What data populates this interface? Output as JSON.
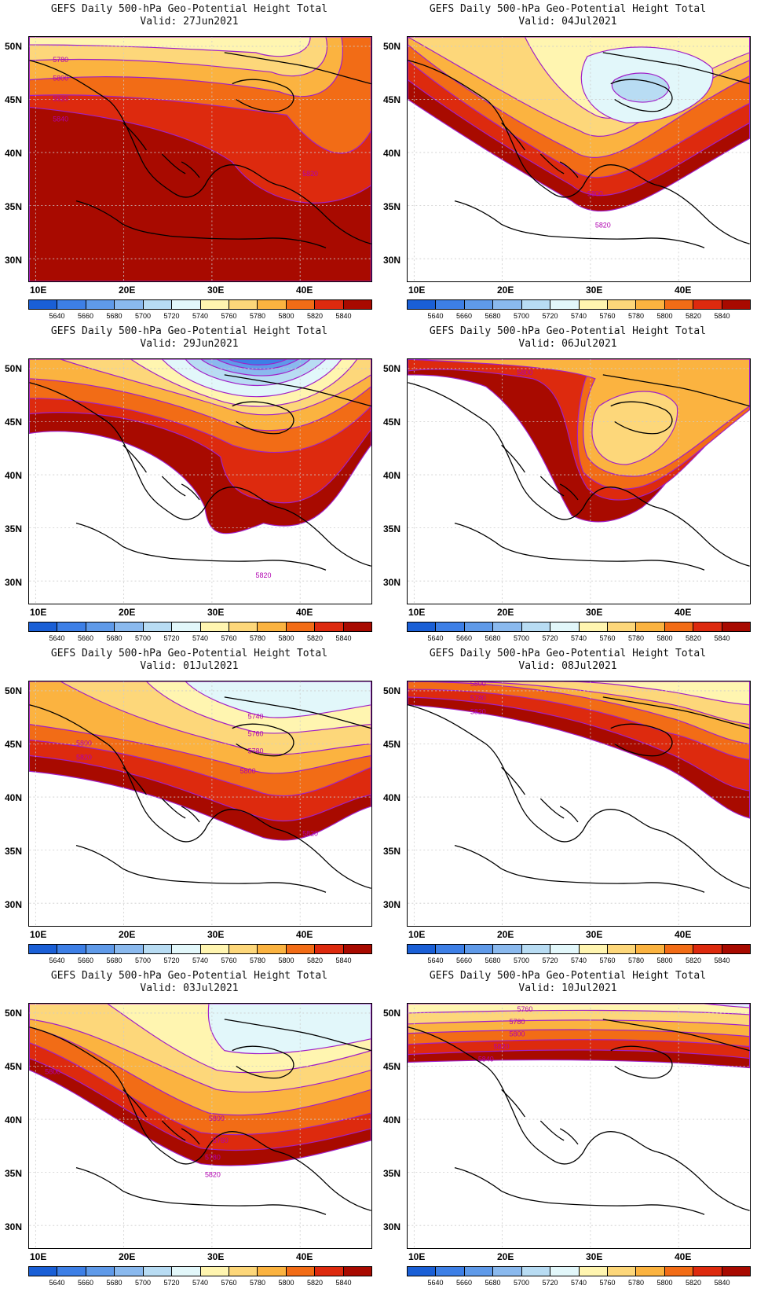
{
  "title": "GEFS Daily 500-hPa Geo-Potential Height Total",
  "panels": [
    {
      "valid": "Valid: 27Jun2021",
      "contour_labels": [
        "5780",
        "5800",
        "5820",
        "5840",
        "5820"
      ]
    },
    {
      "valid": "Valid: 04Jul2021",
      "contour_labels": [
        "5800",
        "5820"
      ]
    },
    {
      "valid": "Valid: 29Jun2021",
      "contour_labels": [
        "5820"
      ]
    },
    {
      "valid": "Valid: 06Jul2021",
      "contour_labels": [
        "5800"
      ]
    },
    {
      "valid": "Valid: 01Jul2021",
      "contour_labels": [
        "5740",
        "5760",
        "5780",
        "5800",
        "5800",
        "5820",
        "5820"
      ]
    },
    {
      "valid": "Valid: 08Jul2021",
      "contour_labels": [
        "5800",
        "5780",
        "5820"
      ]
    },
    {
      "valid": "Valid: 03Jul2021",
      "contour_labels": [
        "5800",
        "5760",
        "5780",
        "5800",
        "5820"
      ]
    },
    {
      "valid": "Valid: 10Jul2021",
      "contour_labels": [
        "5760",
        "5780",
        "5800",
        "5820",
        "5840"
      ]
    }
  ],
  "lat_labels": [
    "50N",
    "45N",
    "40N",
    "35N",
    "30N"
  ],
  "lon_labels": [
    "10E",
    "20E",
    "30E",
    "40E"
  ],
  "colorbar": {
    "labels": [
      "5640",
      "5660",
      "5680",
      "5700",
      "5720",
      "5740",
      "5760",
      "5780",
      "5800",
      "5820",
      "5840"
    ],
    "colors": [
      "#1a5fd6",
      "#3d7fe6",
      "#5f9ae9",
      "#8ab9ee",
      "#b8dcf3",
      "#e2f7fa",
      "#fff5b0",
      "#fdd77a",
      "#fbb340",
      "#f26c16",
      "#dd2a0e",
      "#a80a00"
    ]
  },
  "colors": {
    "contour": "#a020c8",
    "contour_label": "#b000b0"
  }
}
